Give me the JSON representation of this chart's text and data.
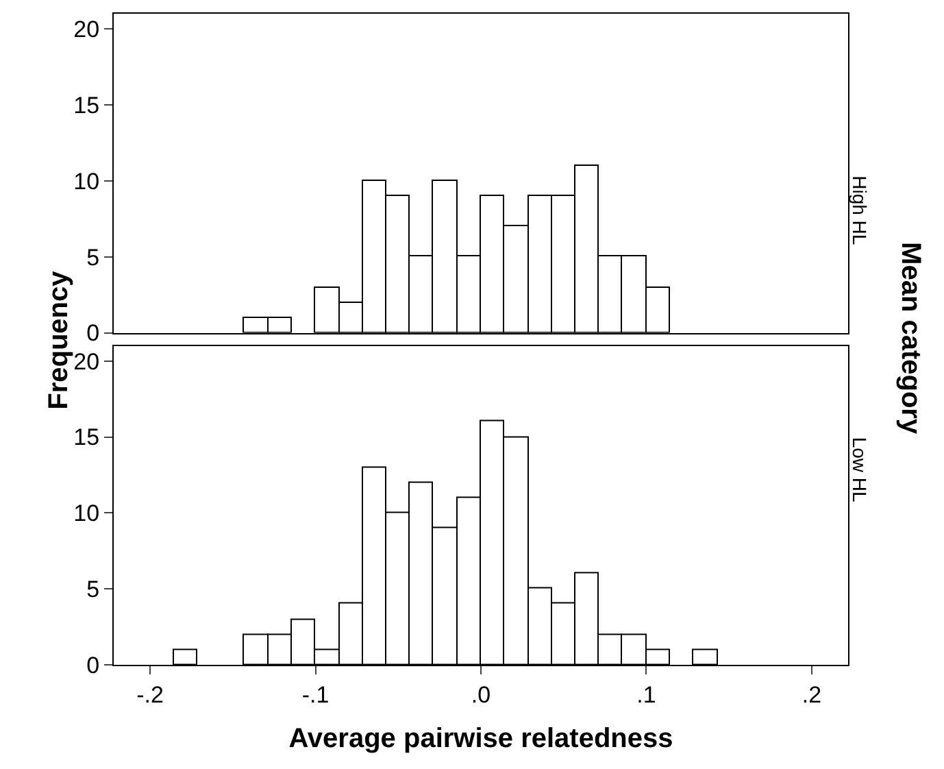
{
  "chart_data": [
    {
      "type": "histogram",
      "ylabel": "Frequency",
      "annotations": [
        "High HL",
        "Mean category"
      ],
      "color": "#ffffff",
      "tick_labels": "y",
      "bins": [
        -0.1429,
        -0.1286,
        -0.1143,
        -0.1,
        -0.0857,
        -0.0714,
        -0.0571,
        -0.0429,
        -0.0286,
        -0.0143,
        0.0,
        0.0143,
        0.0286,
        0.0429,
        0.0571,
        0.0714,
        0.0857,
        0.1,
        0.1143
      ],
      "values": [
        1,
        1,
        0,
        3,
        2,
        10,
        9,
        5,
        10,
        5,
        9,
        7,
        9,
        9,
        11,
        5,
        5,
        3
      ],
      "xlim": [
        -0.222,
        0.222
      ],
      "ylim": [
        0,
        21
      ],
      "yticks": [
        0,
        5,
        10,
        15,
        20
      ]
    },
    {
      "type": "histogram",
      "xlabel": "Average pairwise relatedness",
      "annotations": [
        "Low HL"
      ],
      "color": "#ffffff",
      "bins": [
        -0.1857,
        -0.1714,
        -0.1571,
        -0.1429,
        -0.1286,
        -0.1143,
        -0.1,
        -0.0857,
        -0.0714,
        -0.0571,
        -0.0429,
        -0.0286,
        -0.0143,
        0.0,
        0.0143,
        0.0286,
        0.0429,
        0.0571,
        0.0714,
        0.0857,
        0.1,
        0.1143,
        0.1286,
        0.1429
      ],
      "values": [
        1,
        0,
        0,
        2,
        2,
        3,
        1,
        4,
        13,
        10,
        12,
        9,
        11,
        16,
        15,
        5,
        4,
        6,
        2,
        2,
        1,
        0,
        1
      ],
      "xlim": [
        -0.222,
        0.222
      ],
      "xticks": [
        {
          "value": -0.2,
          "label": "-.2"
        },
        {
          "value": -0.1,
          "label": "-.1"
        },
        {
          "value": 0.0,
          "label": ".0"
        },
        {
          "value": 0.1,
          "label": ".1"
        },
        {
          "value": 0.2,
          "label": ".2"
        }
      ],
      "ylim": [
        0,
        21
      ],
      "yticks": [
        0,
        5,
        10,
        15,
        20
      ]
    }
  ]
}
